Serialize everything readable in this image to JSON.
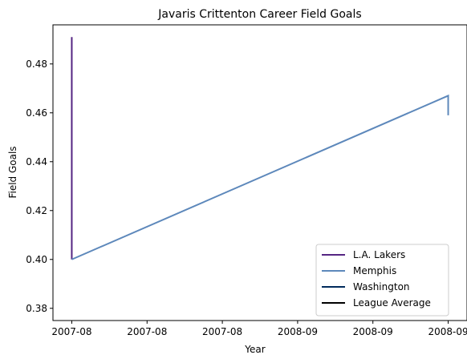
{
  "chart_data": {
    "type": "line",
    "title": "Javaris Crittenton Career Field Goals",
    "xlabel": "Year",
    "ylabel": "Field Goals",
    "x_tick_labels": [
      "2007-08",
      "2007-08",
      "2007-08",
      "2008-09",
      "2008-09",
      "2008-09"
    ],
    "x_ticks": [
      0,
      0.2,
      0.4,
      0.6,
      0.8,
      1.0
    ],
    "xlim": [
      -0.05,
      1.05
    ],
    "ylim": [
      0.375,
      0.496
    ],
    "y_ticks": [
      0.38,
      0.4,
      0.42,
      0.44,
      0.46,
      0.48
    ],
    "y_tick_labels": [
      "0.38",
      "0.40",
      "0.42",
      "0.44",
      "0.46",
      "0.48"
    ],
    "grid": false,
    "legend_position": "lower-right",
    "series": [
      {
        "name": "L.A. Lakers",
        "color": "#552583",
        "x": [
          0,
          0
        ],
        "y": [
          0.491,
          0.4
        ]
      },
      {
        "name": "Memphis",
        "color": "#5d88bb",
        "x": [
          0,
          1,
          1
        ],
        "y": [
          0.4,
          0.467,
          0.459
        ]
      },
      {
        "name": "Washington",
        "color": "#002b5c",
        "x": [],
        "y": []
      },
      {
        "name": "League Average",
        "color": "#000000",
        "x": [],
        "y": []
      }
    ]
  }
}
